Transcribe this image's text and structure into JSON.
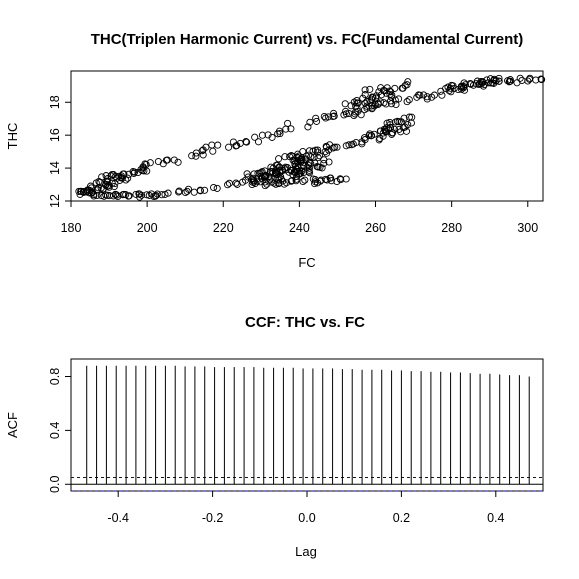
{
  "chart_data": [
    {
      "type": "scatter",
      "title": "THC(Triplen Harmonic Current) vs. FC(Fundamental Current)",
      "xlabel": "FC",
      "ylabel": "THC",
      "xlim": [
        180,
        304
      ],
      "ylim": [
        12,
        19.9
      ],
      "xticks": [
        180,
        200,
        220,
        240,
        260,
        280,
        300
      ],
      "yticks": [
        12,
        14,
        16,
        18
      ],
      "point_style": "open-circle",
      "segments": [
        {
          "x0": 182,
          "y0": 12.45,
          "x1": 186,
          "y1": 12.6,
          "n": 10,
          "jx": 1.2,
          "jy": 0.12
        },
        {
          "x0": 183,
          "y0": 12.6,
          "x1": 194,
          "y1": 13.4,
          "n": 30,
          "jx": 1.2,
          "jy": 0.3
        },
        {
          "x0": 186,
          "y0": 12.3,
          "x1": 202,
          "y1": 12.35,
          "n": 28,
          "jx": 1.0,
          "jy": 0.1
        },
        {
          "x0": 202,
          "y0": 12.35,
          "x1": 218,
          "y1": 12.8,
          "n": 16,
          "jx": 1.0,
          "jy": 0.12
        },
        {
          "x0": 188,
          "y0": 13.2,
          "x1": 200,
          "y1": 14.0,
          "n": 24,
          "jx": 1.2,
          "jy": 0.25
        },
        {
          "x0": 198,
          "y0": 14.0,
          "x1": 208,
          "y1": 14.5,
          "n": 10,
          "jx": 1.2,
          "jy": 0.18
        },
        {
          "x0": 212,
          "y0": 14.6,
          "x1": 218,
          "y1": 15.3,
          "n": 10,
          "jx": 1.0,
          "jy": 0.25
        },
        {
          "x0": 221,
          "y0": 15.4,
          "x1": 228,
          "y1": 15.7,
          "n": 8,
          "jx": 1.0,
          "jy": 0.22
        },
        {
          "x0": 230,
          "y0": 15.8,
          "x1": 238,
          "y1": 16.5,
          "n": 10,
          "jx": 1.2,
          "jy": 0.22
        },
        {
          "x0": 242,
          "y0": 16.6,
          "x1": 254,
          "y1": 17.7,
          "n": 14,
          "jx": 1.3,
          "jy": 0.3
        },
        {
          "x0": 220,
          "y0": 12.9,
          "x1": 232,
          "y1": 13.7,
          "n": 12,
          "jx": 1.2,
          "jy": 0.15
        },
        {
          "x0": 229,
          "y0": 13.3,
          "x1": 245,
          "y1": 14.5,
          "n": 110,
          "jx": 3.5,
          "jy": 0.45
        },
        {
          "x0": 233,
          "y0": 13.1,
          "x1": 251,
          "y1": 13.3,
          "n": 30,
          "jx": 2.0,
          "jy": 0.15
        },
        {
          "x0": 236,
          "y0": 14.5,
          "x1": 246,
          "y1": 15.2,
          "n": 18,
          "jx": 2.0,
          "jy": 0.2
        },
        {
          "x0": 246,
          "y0": 15.2,
          "x1": 256,
          "y1": 15.6,
          "n": 12,
          "jx": 1.5,
          "jy": 0.15
        },
        {
          "x0": 255,
          "y0": 15.7,
          "x1": 268,
          "y1": 16.4,
          "n": 20,
          "jx": 1.5,
          "jy": 0.25
        },
        {
          "x0": 262,
          "y0": 16.2,
          "x1": 269,
          "y1": 17.0,
          "n": 24,
          "jx": 1.5,
          "jy": 0.3
        },
        {
          "x0": 254,
          "y0": 17.6,
          "x1": 264,
          "y1": 18.4,
          "n": 45,
          "jx": 2.4,
          "jy": 0.45
        },
        {
          "x0": 258,
          "y0": 18.6,
          "x1": 270,
          "y1": 19.1,
          "n": 14,
          "jx": 1.8,
          "jy": 0.2
        },
        {
          "x0": 266,
          "y0": 18.0,
          "x1": 282,
          "y1": 18.9,
          "n": 20,
          "jx": 1.5,
          "jy": 0.2
        },
        {
          "x0": 280,
          "y0": 18.8,
          "x1": 292,
          "y1": 19.35,
          "n": 30,
          "jx": 1.5,
          "jy": 0.2
        },
        {
          "x0": 288,
          "y0": 19.2,
          "x1": 303,
          "y1": 19.4,
          "n": 22,
          "jx": 1.5,
          "jy": 0.15
        }
      ]
    },
    {
      "type": "bar",
      "title": "CCF: THC vs. FC",
      "xlabel": "Lag",
      "ylabel": "ACF",
      "xlim": [
        -0.5,
        0.5
      ],
      "ylim": [
        -0.05,
        0.93
      ],
      "xticks": [
        -0.4,
        -0.2,
        0.0,
        0.2,
        0.4
      ],
      "xtick_labels": [
        "-0.4",
        "-0.2",
        "0.0",
        "0.2",
        "0.4"
      ],
      "yticks": [
        0.0,
        0.4,
        0.8
      ],
      "ytick_labels": [
        "0.0",
        "0.4",
        "0.8"
      ],
      "lags": [
        -0.4667,
        -0.4458,
        -0.425,
        -0.4042,
        -0.3833,
        -0.3625,
        -0.3417,
        -0.3208,
        -0.3,
        -0.2792,
        -0.2583,
        -0.2375,
        -0.2167,
        -0.1958,
        -0.175,
        -0.1542,
        -0.1333,
        -0.1125,
        -0.0917,
        -0.0708,
        -0.05,
        -0.0292,
        -0.0083,
        0.0125,
        0.0333,
        0.0542,
        0.075,
        0.0958,
        0.1167,
        0.1375,
        0.1583,
        0.1792,
        0.2,
        0.2208,
        0.2417,
        0.2625,
        0.2833,
        0.3042,
        0.325,
        0.3458,
        0.3667,
        0.3875,
        0.4083,
        0.4292,
        0.45,
        0.4708
      ],
      "values": [
        0.88,
        0.88,
        0.88,
        0.88,
        0.88,
        0.88,
        0.88,
        0.88,
        0.88,
        0.88,
        0.875,
        0.875,
        0.875,
        0.87,
        0.87,
        0.87,
        0.87,
        0.87,
        0.865,
        0.865,
        0.865,
        0.865,
        0.86,
        0.86,
        0.86,
        0.86,
        0.855,
        0.855,
        0.85,
        0.85,
        0.85,
        0.845,
        0.845,
        0.84,
        0.84,
        0.835,
        0.835,
        0.83,
        0.83,
        0.825,
        0.82,
        0.82,
        0.815,
        0.81,
        0.81,
        0.8
      ],
      "ci": 0.05,
      "ci_color": "#0000cc"
    }
  ]
}
